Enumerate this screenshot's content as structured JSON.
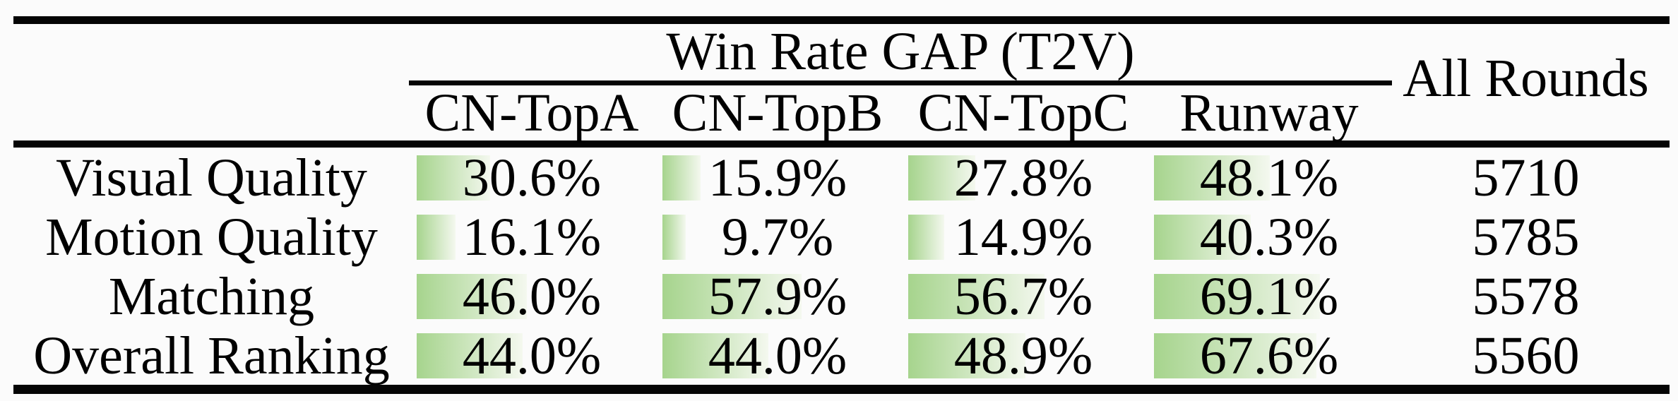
{
  "page": {
    "background": "#fbfbfb",
    "rule_color": "#050505",
    "text_color": "#000000"
  },
  "table": {
    "group_title": "Win Rate GAP (T2V)",
    "all_rounds_header": "All Rounds",
    "columns": [
      "CN-TopA",
      "CN-TopB",
      "CN-TopC",
      "Runway"
    ],
    "bar": {
      "color_start": "#a6d48d",
      "color_end": "#f4f8ef"
    },
    "rows": [
      {
        "label": "Visual Quality",
        "cells": [
          {
            "text": "30.6%",
            "pct": 30.6
          },
          {
            "text": "15.9%",
            "pct": 15.9
          },
          {
            "text": "27.8%",
            "pct": 27.8
          },
          {
            "text": "48.1%",
            "pct": 48.1
          }
        ],
        "all_rounds": "5710"
      },
      {
        "label": "Motion Quality",
        "cells": [
          {
            "text": "16.1%",
            "pct": 16.1
          },
          {
            "text": "9.7%",
            "pct": 9.7
          },
          {
            "text": "14.9%",
            "pct": 14.9
          },
          {
            "text": "40.3%",
            "pct": 40.3
          }
        ],
        "all_rounds": "5785"
      },
      {
        "label": "Matching",
        "cells": [
          {
            "text": "46.0%",
            "pct": 46.0
          },
          {
            "text": "57.9%",
            "pct": 57.9
          },
          {
            "text": "56.7%",
            "pct": 56.7
          },
          {
            "text": "69.1%",
            "pct": 69.1
          }
        ],
        "all_rounds": "5578"
      },
      {
        "label": "Overall Ranking",
        "cells": [
          {
            "text": "44.0%",
            "pct": 44.0
          },
          {
            "text": "44.0%",
            "pct": 44.0
          },
          {
            "text": "48.9%",
            "pct": 48.9
          },
          {
            "text": "67.6%",
            "pct": 67.6
          }
        ],
        "all_rounds": "5560"
      }
    ]
  },
  "chart_data": {
    "type": "table",
    "title": "Win Rate GAP (T2V)",
    "categories": [
      "Visual Quality",
      "Motion Quality",
      "Matching",
      "Overall Ranking"
    ],
    "series": [
      {
        "name": "CN-TopA",
        "values": [
          30.6,
          16.1,
          46.0,
          44.0
        ],
        "unit": "%"
      },
      {
        "name": "CN-TopB",
        "values": [
          15.9,
          9.7,
          57.9,
          44.0
        ],
        "unit": "%"
      },
      {
        "name": "CN-TopC",
        "values": [
          27.8,
          14.9,
          56.7,
          48.9
        ],
        "unit": "%"
      },
      {
        "name": "Runway",
        "values": [
          48.1,
          40.3,
          69.1,
          67.6
        ],
        "unit": "%"
      },
      {
        "name": "All Rounds",
        "values": [
          5710,
          5785,
          5578,
          5560
        ],
        "unit": "count"
      }
    ],
    "layout": {
      "in_cell_bars": true,
      "bar_scale_full_pct": 100,
      "bar_color": "#a6d48d"
    }
  }
}
